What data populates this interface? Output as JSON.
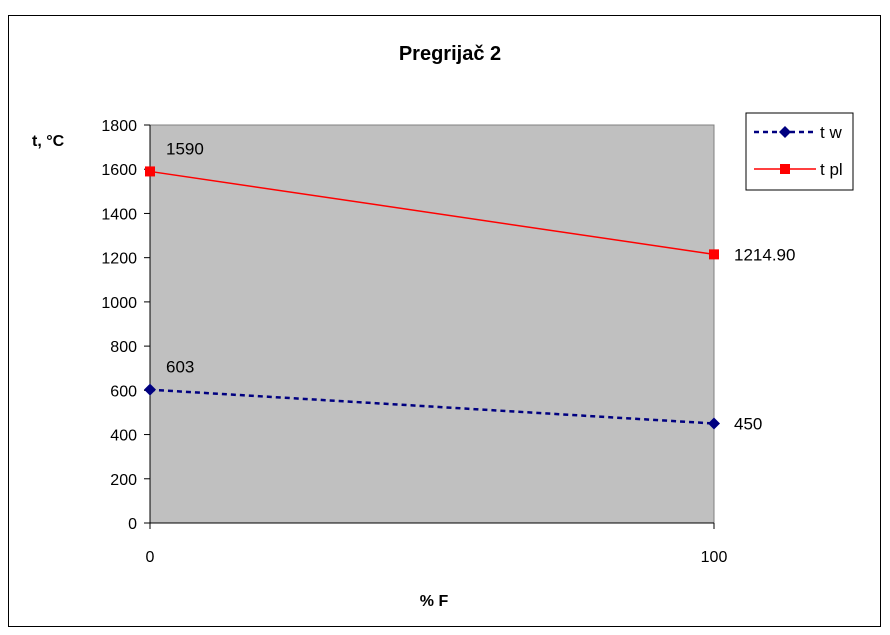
{
  "chart_data": {
    "type": "line",
    "title": "Pregrijač 2",
    "xlabel": "% F",
    "ylabel": "t, °C",
    "x": [
      0,
      100
    ],
    "x_tick_labels": [
      "0",
      "100"
    ],
    "ylim": [
      0,
      1800
    ],
    "yticks": [
      0,
      200,
      400,
      600,
      800,
      1000,
      1200,
      1400,
      1600,
      1800
    ],
    "grid": false,
    "plot_background": "#c0c0c0",
    "legend_position": "right",
    "series": [
      {
        "name": "t w",
        "values": [
          603,
          450
        ],
        "labels": [
          "603",
          "450"
        ],
        "color": "#000080",
        "line_style": "dashed",
        "marker": "diamond"
      },
      {
        "name": "t pl",
        "values": [
          1590,
          1214.9
        ],
        "labels": [
          "1590",
          "1214.90"
        ],
        "color": "#ff0000",
        "line_style": "solid",
        "marker": "square"
      }
    ]
  }
}
